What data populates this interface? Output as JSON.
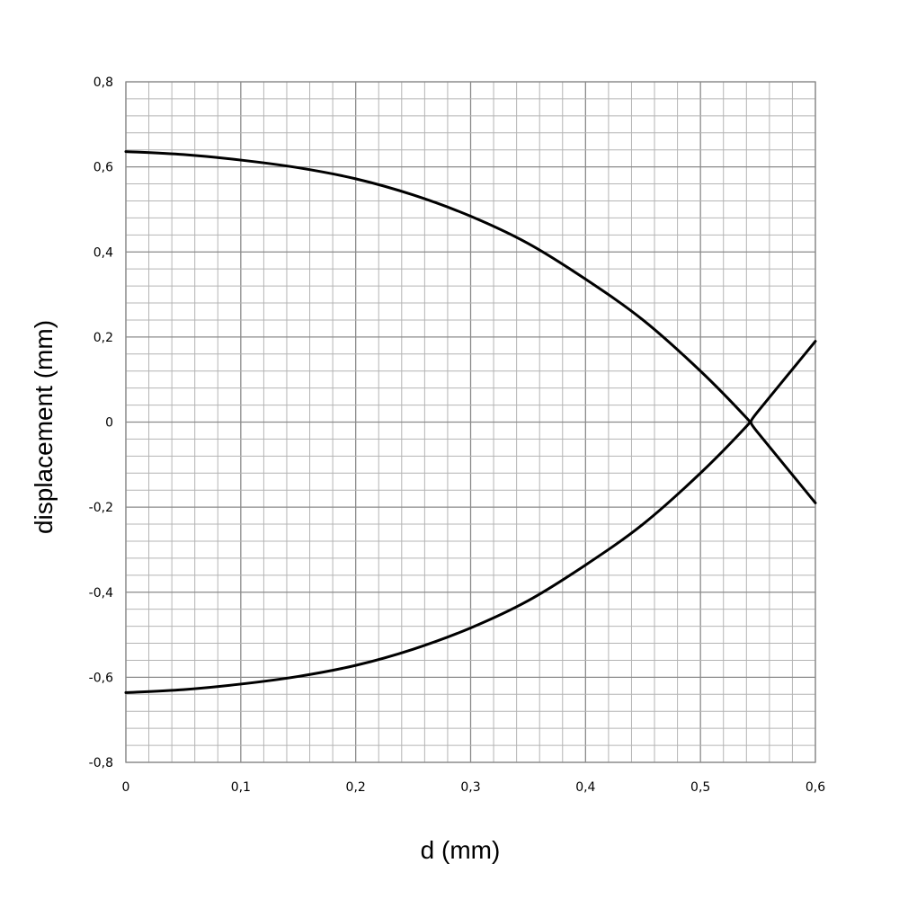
{
  "chart_data": {
    "type": "line",
    "title": "",
    "xlabel": "d (mm)",
    "ylabel": "displacement (mm)",
    "xlim": [
      0,
      0.6
    ],
    "ylim": [
      -0.8,
      0.8
    ],
    "x_ticks": [
      "0",
      "0,1",
      "0,2",
      "0,3",
      "0,4",
      "0,5",
      "0,6"
    ],
    "y_ticks": [
      "0,8",
      "0,6",
      "0,4",
      "0,2",
      "0",
      "-0,2",
      "-0,4",
      "-0,6",
      "-0,8"
    ],
    "grid": true,
    "legend": "none",
    "x": [
      0,
      0.05,
      0.1,
      0.15,
      0.2,
      0.25,
      0.3,
      0.35,
      0.4,
      0.45,
      0.5,
      0.54,
      0.55,
      0.6
    ],
    "series": [
      {
        "values": [
          0.636,
          0.629,
          0.616,
          0.598,
          0.572,
          0.534,
          0.484,
          0.42,
          0.336,
          0.24,
          0.12,
          0.01,
          -0.025,
          -0.19
        ]
      },
      {
        "values": [
          -0.636,
          -0.629,
          -0.616,
          -0.598,
          -0.572,
          -0.534,
          -0.484,
          -0.42,
          -0.336,
          -0.24,
          -0.12,
          -0.01,
          0.025,
          0.19
        ]
      }
    ]
  }
}
